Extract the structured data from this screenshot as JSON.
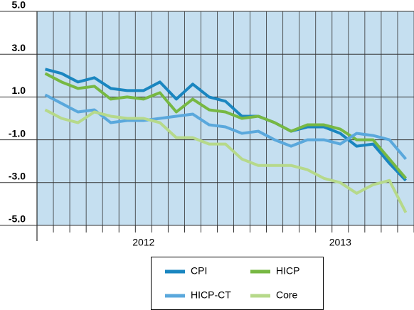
{
  "chart_data": {
    "type": "line",
    "categories": [
      null,
      null,
      null,
      null,
      null,
      null,
      "2012",
      null,
      null,
      null,
      null,
      null,
      null,
      null,
      null,
      null,
      null,
      null,
      "2013",
      null,
      null,
      null,
      null
    ],
    "series": [
      {
        "name": "CPI",
        "color": "#1a86c0",
        "values": [
          2.3,
          2.1,
          1.7,
          1.9,
          1.4,
          1.3,
          1.3,
          1.7,
          0.9,
          1.6,
          1.0,
          0.8,
          0.1,
          0.1,
          -0.2,
          -0.6,
          -0.4,
          -0.4,
          -0.7,
          -1.3,
          -1.2,
          -2.1,
          -2.9
        ]
      },
      {
        "name": "HICP",
        "color": "#77b843",
        "values": [
          2.1,
          1.7,
          1.4,
          1.5,
          0.9,
          1.0,
          0.9,
          1.2,
          0.3,
          0.9,
          0.4,
          0.3,
          0.0,
          0.1,
          -0.2,
          -0.6,
          -0.3,
          -0.3,
          -0.5,
          -1.0,
          -1.0,
          -1.9,
          -2.8
        ]
      },
      {
        "name": "HICP-CT",
        "color": "#5aa8dc",
        "values": [
          1.1,
          0.7,
          0.3,
          0.4,
          -0.2,
          -0.1,
          -0.1,
          0.0,
          0.1,
          0.2,
          -0.3,
          -0.4,
          -0.7,
          -0.6,
          -1.0,
          -1.3,
          -1.0,
          -1.0,
          -1.2,
          -0.7,
          -0.8,
          -1.0,
          -1.9
        ]
      },
      {
        "name": "Core",
        "color": "#b6d98a",
        "values": [
          0.4,
          0.0,
          -0.2,
          0.3,
          0.1,
          0.0,
          0.0,
          -0.2,
          -0.9,
          -0.9,
          -1.2,
          -1.2,
          -1.9,
          -2.2,
          -2.2,
          -2.2,
          -2.4,
          -2.8,
          -3.0,
          -3.5,
          -3.1,
          -2.9,
          -4.4
        ]
      }
    ],
    "ylim": [
      -5,
      5
    ],
    "yticks": [
      {
        "value": -5,
        "label": "-5.0"
      },
      {
        "value": -3,
        "label": "-3.0"
      },
      {
        "value": -1,
        "label": "-1.0"
      },
      {
        "value": 1,
        "label": "1.0"
      },
      {
        "value": 3,
        "label": "3.0"
      },
      {
        "value": 5,
        "label": "5.0"
      }
    ],
    "grid": true,
    "legend": "bottom"
  }
}
